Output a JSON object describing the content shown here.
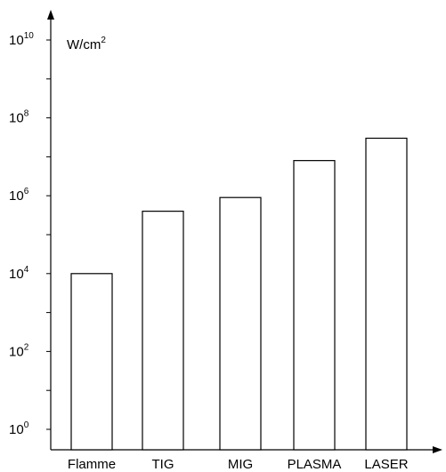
{
  "chart_data": {
    "type": "bar",
    "ylabel_base": "W/cm",
    "ylabel_exp": "2",
    "yscale": "log10",
    "ylim_exp": [
      0,
      10
    ],
    "yticks": [
      {
        "base": "10",
        "exp": "10"
      },
      {
        "base": "10",
        "exp": "8"
      },
      {
        "base": "10",
        "exp": "6"
      },
      {
        "base": "10",
        "exp": "4"
      },
      {
        "base": "10",
        "exp": "2"
      },
      {
        "base": "10",
        "exp": "0"
      }
    ],
    "categories": [
      "Flamme",
      "TIG",
      "MIG",
      "PLASMA",
      "LASER"
    ],
    "values": [
      10000,
      400000,
      900000,
      8000000,
      30000000
    ],
    "bar_fill": "#ffffff",
    "line_color": "#000000",
    "grid": false,
    "legend": "none"
  }
}
